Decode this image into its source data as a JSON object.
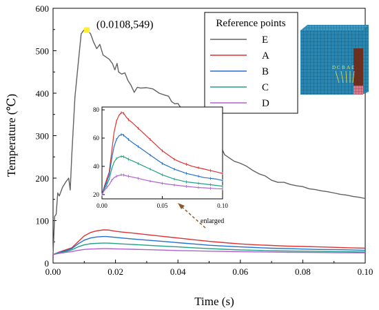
{
  "chart_data": {
    "type": "line",
    "xlabel": "Time (s)",
    "ylabel": "Temperature (℃)",
    "xlim": [
      0,
      0.1
    ],
    "ylim": [
      0,
      600
    ],
    "xticks": [
      "0.00",
      "0.02",
      "0.04",
      "0.06",
      "0.08",
      "0.10"
    ],
    "yticks": [
      "0",
      "100",
      "200",
      "300",
      "400",
      "500",
      "600"
    ],
    "legend_title": "Reference points",
    "legend_position": "top-right",
    "annotation": {
      "text": "(0.0108,549)",
      "x": 0.0108,
      "y": 549,
      "marker_color": "#ffee33"
    },
    "series": [
      {
        "name": "E",
        "color": "#606060",
        "x": [
          0.0,
          0.0005,
          0.001,
          0.0015,
          0.002,
          0.003,
          0.004,
          0.005,
          0.0055,
          0.006,
          0.007,
          0.008,
          0.009,
          0.0098,
          0.0108,
          0.012,
          0.013,
          0.014,
          0.015,
          0.016,
          0.017,
          0.018,
          0.019,
          0.0198,
          0.0205,
          0.021,
          0.022,
          0.023,
          0.024,
          0.025,
          0.026,
          0.027,
          0.028,
          0.03,
          0.032,
          0.034,
          0.036,
          0.037,
          0.038,
          0.039,
          0.04,
          0.041,
          0.042,
          0.043,
          0.044,
          0.045,
          0.046,
          0.047,
          0.048,
          0.049,
          0.05,
          0.051,
          0.052,
          0.053,
          0.054,
          0.055,
          0.056,
          0.058,
          0.06,
          0.062,
          0.064,
          0.066,
          0.068,
          0.07,
          0.072,
          0.074,
          0.076,
          0.078,
          0.08,
          0.082,
          0.084,
          0.086,
          0.088,
          0.09,
          0.092,
          0.094,
          0.096,
          0.098,
          0.1
        ],
        "y": [
          20,
          110,
          115,
          165,
          158,
          178,
          190,
          200,
          172,
          255,
          390,
          465,
          540,
          548,
          549,
          540,
          520,
          505,
          515,
          490,
          485,
          480,
          470,
          455,
          470,
          450,
          445,
          448,
          430,
          418,
          402,
          414,
          412,
          413,
          410,
          400,
          395,
          393,
          380,
          375,
          376,
          365,
          345,
          330,
          320,
          310,
          300,
          290,
          280,
          280,
          270,
          252,
          300,
          290,
          270,
          255,
          250,
          240,
          235,
          228,
          218,
          210,
          205,
          195,
          190,
          190,
          185,
          182,
          180,
          175,
          173,
          170,
          168,
          165,
          162,
          160,
          157,
          155,
          152
        ]
      },
      {
        "name": "A",
        "color": "#e03030",
        "x": [
          0.0,
          0.002,
          0.004,
          0.006,
          0.008,
          0.01,
          0.012,
          0.014,
          0.016,
          0.017,
          0.018,
          0.02,
          0.022,
          0.025,
          0.03,
          0.035,
          0.04,
          0.045,
          0.05,
          0.055,
          0.06,
          0.065,
          0.07,
          0.075,
          0.08,
          0.085,
          0.09,
          0.095,
          0.1
        ],
        "y": [
          20,
          26,
          31,
          36,
          50,
          64,
          72,
          76,
          78,
          78,
          77.5,
          75,
          73,
          71,
          67,
          63,
          59,
          55,
          51,
          48,
          45,
          43,
          41.5,
          40,
          39,
          38,
          37,
          36,
          35
        ]
      },
      {
        "name": "B",
        "color": "#2070d0",
        "x": [
          0.0,
          0.002,
          0.004,
          0.006,
          0.008,
          0.01,
          0.012,
          0.014,
          0.016,
          0.017,
          0.018,
          0.02,
          0.022,
          0.025,
          0.03,
          0.035,
          0.04,
          0.045,
          0.05,
          0.055,
          0.06,
          0.065,
          0.07,
          0.075,
          0.08,
          0.085,
          0.09,
          0.095,
          0.1
        ],
        "y": [
          20,
          25,
          29,
          34,
          45,
          54,
          59,
          61.5,
          62.5,
          62.5,
          62,
          60.5,
          59,
          57,
          54,
          51,
          48,
          45,
          42,
          40,
          38,
          36.5,
          35,
          34,
          33,
          32,
          31.5,
          31,
          30
        ]
      },
      {
        "name": "C",
        "color": "#20a080",
        "x": [
          0.0,
          0.002,
          0.004,
          0.006,
          0.008,
          0.01,
          0.012,
          0.014,
          0.016,
          0.017,
          0.018,
          0.02,
          0.022,
          0.025,
          0.03,
          0.035,
          0.04,
          0.045,
          0.05,
          0.055,
          0.06,
          0.065,
          0.07,
          0.075,
          0.08,
          0.085,
          0.09,
          0.095,
          0.1
        ],
        "y": [
          20,
          24,
          27,
          31,
          38,
          43,
          45.5,
          46.5,
          47,
          47,
          46.8,
          46,
          45,
          44,
          42,
          40,
          38,
          36,
          34,
          32.5,
          31,
          30,
          29,
          28.5,
          28,
          27.5,
          27,
          26.5,
          26
        ]
      },
      {
        "name": "D",
        "color": "#b060d0",
        "x": [
          0.0,
          0.002,
          0.004,
          0.006,
          0.008,
          0.01,
          0.012,
          0.014,
          0.016,
          0.017,
          0.018,
          0.02,
          0.022,
          0.025,
          0.03,
          0.035,
          0.04,
          0.045,
          0.05,
          0.055,
          0.06,
          0.065,
          0.07,
          0.075,
          0.08,
          0.085,
          0.09,
          0.095,
          0.1
        ],
        "y": [
          20,
          23,
          25,
          27,
          30,
          32,
          33,
          33.5,
          34,
          34,
          33.8,
          33.3,
          33,
          32.5,
          31.5,
          30.5,
          29.5,
          28.8,
          28,
          27.3,
          26.8,
          26.3,
          25.8,
          25.4,
          25,
          24.8,
          24.5,
          24.2,
          24
        ]
      }
    ],
    "inset": {
      "xlim": [
        0,
        0.1
      ],
      "ylim": [
        17,
        82
      ],
      "xticks": [
        "0.00",
        "0.05",
        "0.10"
      ],
      "yticks": [
        "20",
        "40",
        "60",
        "80"
      ],
      "series_shown": [
        "A",
        "B",
        "C",
        "D"
      ],
      "annotation": "enlarged"
    },
    "model_labels": [
      "D",
      "C",
      "B",
      "A",
      "E"
    ]
  }
}
